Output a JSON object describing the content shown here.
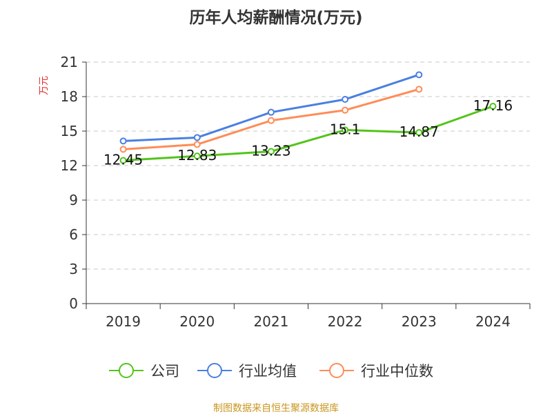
{
  "chart_data": {
    "type": "line",
    "title": "历年人均薪酬情况(万元)",
    "ylabel": "万元",
    "xlabel": "",
    "categories": [
      "2019",
      "2020",
      "2021",
      "2022",
      "2023",
      "2024"
    ],
    "ylim": [
      0,
      21
    ],
    "yticks": [
      "0",
      "3",
      "6",
      "9",
      "12",
      "15",
      "18",
      "21"
    ],
    "grid": true,
    "legend_position": "bottom",
    "series": [
      {
        "name": "公司",
        "color": "#52c41a",
        "values": [
          12.45,
          12.83,
          13.23,
          15.1,
          14.87,
          17.16
        ],
        "labels": [
          "12.45",
          "12.83",
          "13.23",
          "15.1",
          "14.87",
          "17.16"
        ]
      },
      {
        "name": "行业均值",
        "color": "#4a7fe0",
        "values": [
          14.14,
          14.44,
          16.64,
          17.76,
          19.9,
          null
        ]
      },
      {
        "name": "行业中位数",
        "color": "#ff8c55",
        "values": [
          13.42,
          13.84,
          15.92,
          16.82,
          18.64,
          null
        ]
      }
    ]
  },
  "source": "制图数据来自恒生聚源数据库"
}
